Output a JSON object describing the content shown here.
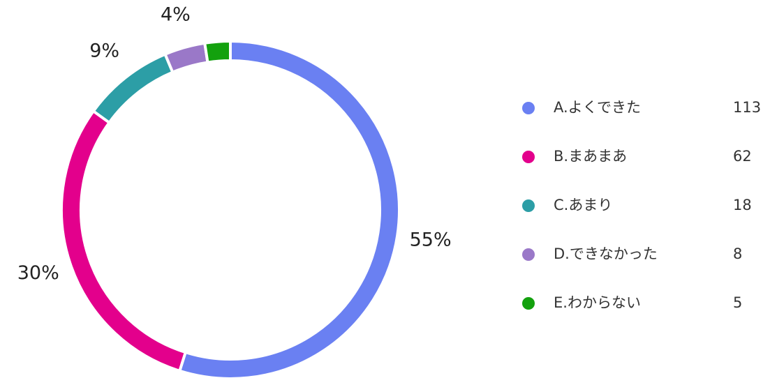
{
  "chart_data": {
    "type": "donut",
    "categories": [
      "A.よくできた",
      "B.まあまあ",
      "C.あまり",
      "D.できなかった",
      "E.わからない"
    ],
    "values": [
      113,
      62,
      18,
      8,
      5
    ],
    "value_labels": [
      "55%",
      "30%",
      "9%",
      "4%",
      null
    ],
    "colors": [
      "#6a80f2",
      "#e3008c",
      "#2c9ea6",
      "#9a78c8",
      "#13a10e"
    ],
    "legend": "right"
  }
}
